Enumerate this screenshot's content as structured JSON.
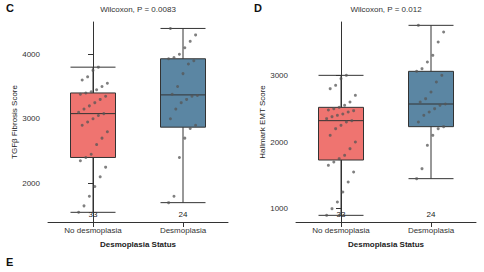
{
  "figure": {
    "bottom_label": "E"
  },
  "chart_data": [
    {
      "type": "boxplot",
      "panel": "C",
      "title": "Wilcoxon, P = 0.0083",
      "x_label": "Desmoplasia Status",
      "y_label": "TGFβ Fibrosis Score",
      "categories": [
        "No desmoplasia",
        "Desmoplasia"
      ],
      "colors": [
        "#ef7470",
        "#5b86a3"
      ],
      "boxes": [
        [
          1550,
          2400,
          3080,
          3400,
          3800
        ],
        [
          1700,
          2870,
          3370,
          3930,
          4400
        ]
      ],
      "points": [
        [
          1550,
          1650,
          1800,
          1950,
          2100,
          2250,
          2350,
          2400,
          2450,
          2600,
          2700,
          2800,
          2900,
          2950,
          3000,
          3050,
          3080,
          3100,
          3150,
          3200,
          3250,
          3300,
          3350,
          3380,
          3400,
          3420,
          3450,
          3500,
          3550,
          3600,
          3650,
          3750,
          3800
        ],
        [
          1700,
          1800,
          2400,
          2700,
          2850,
          2900,
          3000,
          3150,
          3250,
          3300,
          3350,
          3360,
          3380,
          3500,
          3700,
          3850,
          3900,
          3930,
          3950,
          4000,
          4100,
          4200,
          4300,
          4400
        ]
      ],
      "counts": [
        33,
        24
      ],
      "ylim": [
        1400,
        4500
      ],
      "yticks": [
        2000,
        3000,
        4000
      ],
      "grid": false
    },
    {
      "type": "boxplot",
      "panel": "D",
      "title": "Wilcoxon, P = 0.012",
      "x_label": "Desmoplasia Status",
      "y_label": "Hallmark EMT Score",
      "categories": [
        "No desmoplasia",
        "Desmoplasia"
      ],
      "colors": [
        "#ef7470",
        "#5b86a3"
      ],
      "boxes": [
        [
          900,
          1730,
          2320,
          2520,
          3000
        ],
        [
          1450,
          2230,
          2570,
          3060,
          3750
        ]
      ],
      "points": [
        [
          900,
          1000,
          1100,
          1250,
          1400,
          1550,
          1650,
          1700,
          1750,
          1800,
          1900,
          2000,
          2100,
          2200,
          2250,
          2300,
          2320,
          2350,
          2380,
          2400,
          2420,
          2450,
          2470,
          2480,
          2500,
          2520,
          2550,
          2600,
          2700,
          2800,
          2850,
          2950,
          3000
        ],
        [
          1450,
          1600,
          1950,
          2100,
          2200,
          2230,
          2300,
          2400,
          2450,
          2500,
          2550,
          2570,
          2600,
          2650,
          2750,
          2900,
          3000,
          3060,
          3100,
          3200,
          3300,
          3500,
          3650,
          3750
        ]
      ],
      "counts": [
        33,
        24
      ],
      "ylim": [
        800,
        3800
      ],
      "yticks": [
        1000,
        2000,
        3000
      ],
      "grid": false
    }
  ]
}
